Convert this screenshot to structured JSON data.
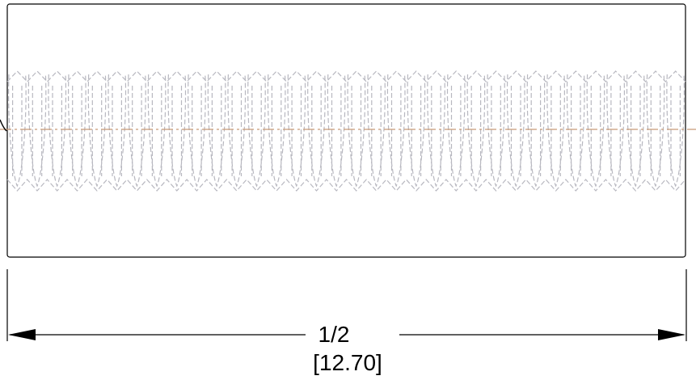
{
  "drawing": {
    "thread_pitch_count": 34,
    "dimension": {
      "imperial": "1/2",
      "metric": "[12.70]"
    },
    "colors": {
      "outline": "#000000",
      "hidden_thread": "#b8b8c0",
      "centerline": "#c89a78",
      "background": "#ffffff"
    }
  }
}
